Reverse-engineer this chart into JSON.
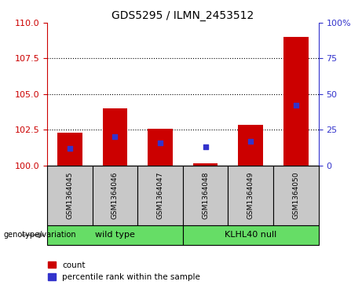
{
  "title": "GDS5295 / ILMN_2453512",
  "samples": [
    "GSM1364045",
    "GSM1364046",
    "GSM1364047",
    "GSM1364048",
    "GSM1364049",
    "GSM1364050"
  ],
  "red_values": [
    102.3,
    104.0,
    102.55,
    100.15,
    102.85,
    109.0
  ],
  "blue_percentiles": [
    12,
    20,
    16,
    13,
    17,
    42
  ],
  "ylim_left": [
    100,
    110
  ],
  "ylim_right": [
    0,
    100
  ],
  "yticks_left": [
    100,
    102.5,
    105,
    107.5,
    110
  ],
  "yticks_right": [
    0,
    25,
    50,
    75,
    100
  ],
  "left_color": "#CC0000",
  "blue_color": "#3333CC",
  "bar_width": 0.55,
  "sample_bg_color": "#C8C8C8",
  "group_bg_color": "#66DD66",
  "legend_red": "count",
  "legend_blue": "percentile rank within the sample",
  "group_spans": [
    [
      0,
      2,
      "wild type"
    ],
    [
      3,
      5,
      "KLHL40 null"
    ]
  ]
}
